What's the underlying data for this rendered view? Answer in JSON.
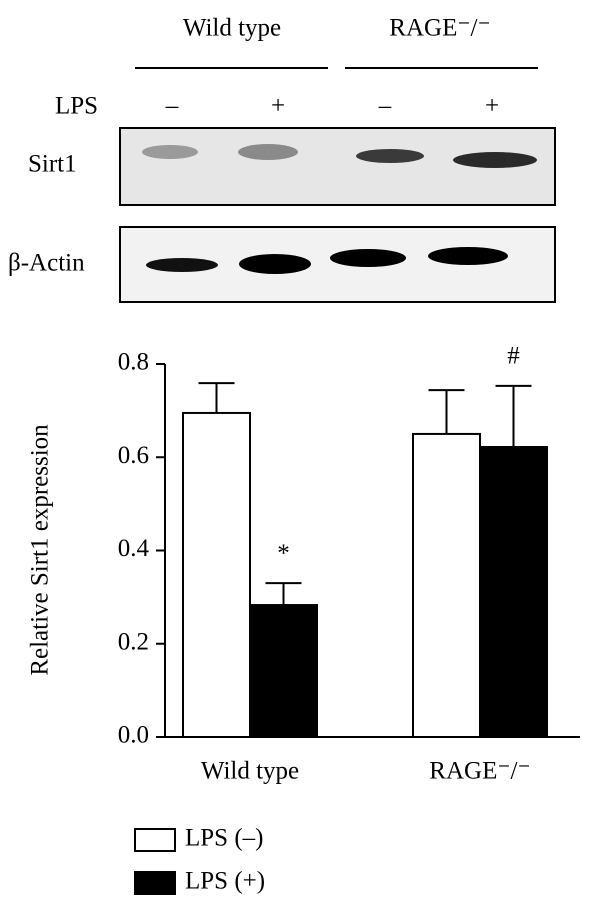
{
  "blot": {
    "groups": [
      "Wild type",
      "RAGE⁻/⁻"
    ],
    "treatment_label": "LPS",
    "lanes": [
      "–",
      "+",
      "–",
      "+"
    ],
    "rows": [
      "Sirt1",
      "β-Actin"
    ]
  },
  "chart_data": {
    "type": "bar",
    "y_label": "Relative Sirt1 expression",
    "categories": [
      "Wild type",
      "RAGE⁻/⁻"
    ],
    "series": [
      {
        "name": "LPS (–)",
        "color": "#ffffff",
        "values": [
          0.695,
          0.65
        ],
        "errors": [
          0.064,
          0.094
        ]
      },
      {
        "name": "LPS (+)",
        "color": "#000000",
        "values": [
          0.283,
          0.622
        ],
        "errors": [
          0.047,
          0.131
        ],
        "annotations": [
          "*",
          "#"
        ]
      }
    ],
    "ylim": [
      0,
      0.8
    ],
    "yticks": [
      {
        "value": 0,
        "label": "0.0"
      },
      0.2,
      0.4,
      0.6,
      0.8
    ],
    "legend": "bottom-left"
  }
}
